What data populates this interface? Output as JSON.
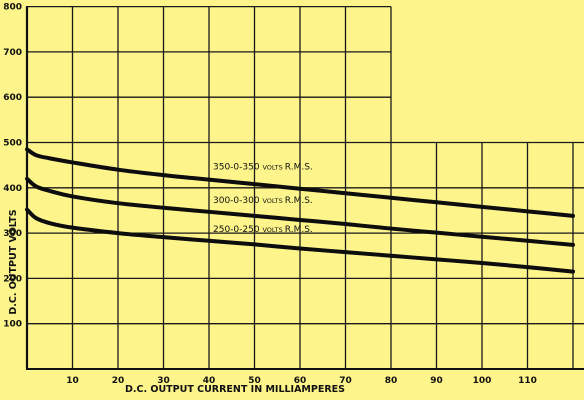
{
  "chart_data": {
    "type": "line",
    "title": "",
    "xlabel": "D.C. OUTPUT CURRENT IN MILLIAMPERES",
    "ylabel": "D.C. OUTPUT VOLTS",
    "xlim": [
      0,
      120
    ],
    "ylim": [
      0,
      800
    ],
    "x_ticks": [
      "10",
      "20",
      "30",
      "40",
      "50",
      "60",
      "70",
      "80",
      "90",
      "100",
      "110"
    ],
    "y_ticks": [
      "100",
      "200",
      "300",
      "400",
      "500",
      "600",
      "700",
      "800"
    ],
    "grid": true,
    "series": [
      {
        "name": "350-0-350",
        "label_suffix": "VOLTS R.M.S.",
        "x": [
          0,
          2,
          5,
          10,
          20,
          30,
          40,
          50,
          60,
          70,
          80,
          90,
          100,
          110,
          120
        ],
        "y": [
          485,
          472,
          465,
          456,
          440,
          428,
          418,
          408,
          398,
          388,
          378,
          368,
          358,
          348,
          338
        ]
      },
      {
        "name": "300-0-300",
        "label_suffix": "VOLTS R.M.S.",
        "x": [
          0,
          2,
          5,
          10,
          20,
          30,
          40,
          50,
          60,
          70,
          80,
          90,
          100,
          110,
          120
        ],
        "y": [
          420,
          403,
          393,
          381,
          366,
          356,
          347,
          338,
          329,
          320,
          310,
          301,
          292,
          283,
          274
        ]
      },
      {
        "name": "250-0-250",
        "label_suffix": "VOLTS R.M.S.",
        "x": [
          0,
          2,
          5,
          10,
          20,
          30,
          40,
          50,
          60,
          70,
          80,
          90,
          100,
          110,
          120
        ],
        "y": [
          352,
          333,
          322,
          312,
          300,
          291,
          283,
          275,
          266,
          258,
          250,
          242,
          234,
          225,
          215
        ]
      }
    ]
  }
}
